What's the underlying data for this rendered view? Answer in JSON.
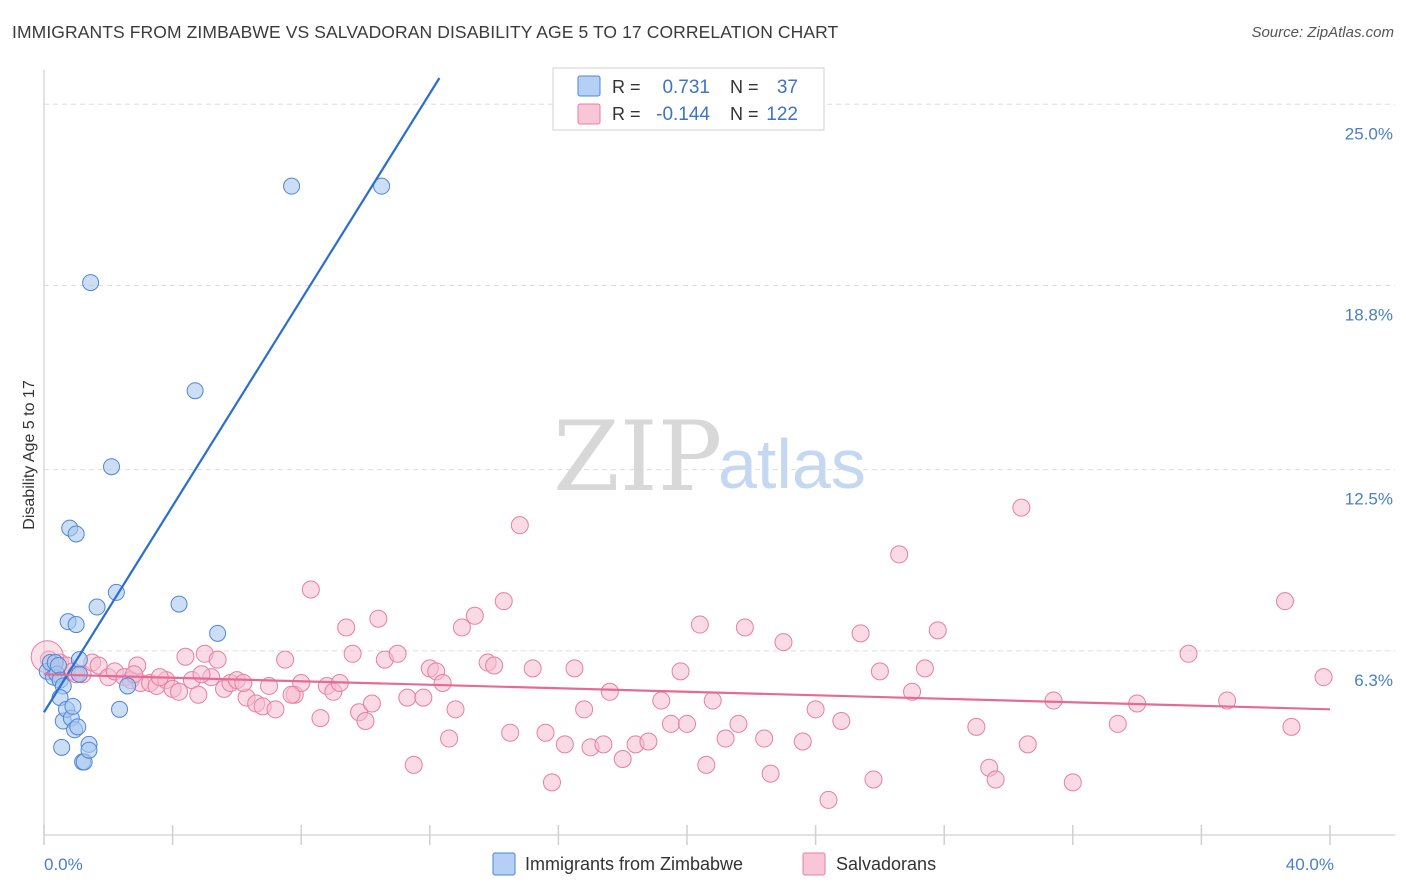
{
  "header": {
    "title": "IMMIGRANTS FROM ZIMBABWE VS SALVADORAN DISABILITY AGE 5 TO 17 CORRELATION CHART",
    "source": "Source: ZipAtlas.com"
  },
  "watermark": {
    "zip": "ZIP",
    "atlas": "atlas"
  },
  "colors": {
    "blue_fill": "#a9c8f0",
    "blue_stroke": "#4f86d4",
    "blue_line": "#2a6fcc",
    "pink_fill": "#f6bcd0",
    "pink_stroke": "#e77fa3",
    "pink_line": "#e56b96",
    "tick_text": "#4a7ec9",
    "grid": "#dddddd"
  },
  "legend": {
    "rows": [
      {
        "r_label": "R =",
        "r_value": "0.731",
        "n_label": "N =",
        "n_value": "37"
      },
      {
        "r_label": "R =",
        "r_value": "-0.144",
        "n_label": "N =",
        "n_value": "122"
      }
    ]
  },
  "bottom_legend": [
    {
      "label": "Immigrants from Zimbabwe"
    },
    {
      "label": "Salvadorans"
    }
  ],
  "chart_data": {
    "type": "scatter",
    "ylabel": "Disability Age 5 to 17",
    "xlim": [
      0,
      40
    ],
    "ylim": [
      0,
      25.9
    ],
    "x_tick_labels": [
      "0.0%",
      "40.0%"
    ],
    "y_ticks": [
      6.3,
      12.5,
      18.8,
      25.0
    ],
    "y_tick_labels": [
      "6.3%",
      "12.5%",
      "18.8%",
      "25.0%"
    ],
    "grid": "dashed horizontal",
    "series": [
      {
        "name": "Immigrants from Zimbabwe",
        "trend": {
          "x": [
            0.0,
            12.3
          ],
          "y": [
            4.2,
            25.9
          ]
        },
        "points": [
          [
            0.1,
            5.6
          ],
          [
            0.2,
            5.9
          ],
          [
            0.3,
            5.4
          ],
          [
            0.35,
            5.9
          ],
          [
            0.4,
            5.5
          ],
          [
            0.45,
            5.8
          ],
          [
            0.5,
            5.3
          ],
          [
            0.6,
            5.1
          ],
          [
            0.5,
            4.7
          ],
          [
            0.55,
            3.0
          ],
          [
            0.6,
            3.9
          ],
          [
            0.7,
            4.3
          ],
          [
            0.75,
            7.3
          ],
          [
            0.8,
            10.5
          ],
          [
            0.85,
            4.0
          ],
          [
            0.9,
            4.4
          ],
          [
            0.95,
            3.6
          ],
          [
            1.0,
            7.2
          ],
          [
            1.0,
            10.3
          ],
          [
            1.05,
            3.7
          ],
          [
            1.1,
            6.0
          ],
          [
            1.1,
            5.5
          ],
          [
            1.2,
            2.5
          ],
          [
            1.25,
            2.5
          ],
          [
            1.4,
            3.1
          ],
          [
            1.4,
            2.9
          ],
          [
            1.45,
            18.9
          ],
          [
            1.65,
            7.8
          ],
          [
            2.1,
            12.6
          ],
          [
            2.25,
            8.3
          ],
          [
            2.35,
            4.3
          ],
          [
            2.6,
            5.1
          ],
          [
            4.2,
            7.9
          ],
          [
            4.7,
            15.2
          ],
          [
            5.4,
            6.9
          ],
          [
            7.7,
            22.2
          ],
          [
            10.5,
            22.2
          ]
        ]
      },
      {
        "name": "Salvadorans",
        "trend": {
          "x": [
            0.0,
            40.0
          ],
          "y": [
            5.5,
            4.3
          ]
        },
        "points": [
          [
            0.15,
            6.0
          ],
          [
            0.3,
            5.7
          ],
          [
            0.5,
            5.9
          ],
          [
            0.7,
            5.8
          ],
          [
            0.9,
            5.6
          ],
          [
            1.2,
            5.5
          ],
          [
            1.5,
            5.9
          ],
          [
            1.7,
            5.8
          ],
          [
            2.0,
            5.4
          ],
          [
            2.2,
            5.6
          ],
          [
            2.5,
            5.4
          ],
          [
            2.7,
            5.3
          ],
          [
            2.9,
            5.8
          ],
          [
            3.0,
            5.2
          ],
          [
            3.3,
            5.2
          ],
          [
            3.5,
            5.1
          ],
          [
            3.8,
            5.3
          ],
          [
            4.0,
            5.0
          ],
          [
            4.2,
            4.9
          ],
          [
            4.4,
            6.1
          ],
          [
            4.6,
            5.3
          ],
          [
            4.8,
            4.8
          ],
          [
            5.0,
            6.2
          ],
          [
            5.2,
            5.4
          ],
          [
            5.4,
            6.0
          ],
          [
            5.6,
            5.0
          ],
          [
            5.8,
            5.2
          ],
          [
            6.0,
            5.3
          ],
          [
            6.3,
            4.7
          ],
          [
            6.6,
            4.5
          ],
          [
            6.8,
            4.4
          ],
          [
            7.0,
            5.1
          ],
          [
            7.2,
            4.3
          ],
          [
            7.5,
            6.0
          ],
          [
            7.8,
            4.8
          ],
          [
            8.0,
            5.2
          ],
          [
            8.3,
            8.4
          ],
          [
            8.6,
            4.0
          ],
          [
            8.8,
            5.1
          ],
          [
            9.0,
            4.9
          ],
          [
            9.2,
            5.2
          ],
          [
            9.4,
            7.1
          ],
          [
            9.6,
            6.2
          ],
          [
            9.8,
            4.2
          ],
          [
            10.0,
            3.9
          ],
          [
            10.2,
            4.5
          ],
          [
            10.4,
            7.4
          ],
          [
            10.6,
            6.0
          ],
          [
            11.0,
            6.2
          ],
          [
            11.3,
            4.7
          ],
          [
            11.5,
            2.4
          ],
          [
            11.8,
            4.7
          ],
          [
            12.0,
            5.7
          ],
          [
            12.2,
            5.6
          ],
          [
            12.4,
            5.2
          ],
          [
            12.6,
            3.3
          ],
          [
            12.8,
            4.3
          ],
          [
            13.0,
            7.1
          ],
          [
            13.4,
            7.5
          ],
          [
            13.8,
            5.9
          ],
          [
            14.0,
            5.8
          ],
          [
            14.3,
            8.0
          ],
          [
            14.5,
            3.5
          ],
          [
            14.8,
            10.6
          ],
          [
            15.2,
            5.7
          ],
          [
            15.6,
            3.5
          ],
          [
            15.8,
            1.8
          ],
          [
            16.2,
            3.1
          ],
          [
            16.5,
            5.7
          ],
          [
            16.8,
            4.3
          ],
          [
            17.0,
            3.0
          ],
          [
            17.4,
            3.1
          ],
          [
            17.6,
            4.9
          ],
          [
            18.0,
            2.6
          ],
          [
            18.4,
            3.1
          ],
          [
            18.8,
            3.2
          ],
          [
            19.2,
            4.6
          ],
          [
            19.5,
            3.8
          ],
          [
            19.8,
            5.6
          ],
          [
            20.0,
            3.8
          ],
          [
            20.4,
            7.2
          ],
          [
            20.6,
            2.4
          ],
          [
            20.8,
            4.6
          ],
          [
            21.2,
            3.3
          ],
          [
            21.6,
            3.8
          ],
          [
            21.8,
            7.1
          ],
          [
            22.4,
            3.3
          ],
          [
            22.6,
            2.1
          ],
          [
            23.0,
            6.6
          ],
          [
            23.6,
            3.2
          ],
          [
            24.0,
            4.3
          ],
          [
            24.4,
            1.2
          ],
          [
            24.8,
            3.9
          ],
          [
            25.4,
            6.9
          ],
          [
            25.8,
            1.9
          ],
          [
            26.0,
            5.6
          ],
          [
            26.6,
            9.6
          ],
          [
            27.0,
            4.9
          ],
          [
            27.4,
            5.7
          ],
          [
            27.8,
            7.0
          ],
          [
            29.0,
            3.7
          ],
          [
            29.4,
            2.3
          ],
          [
            29.6,
            1.9
          ],
          [
            30.4,
            11.2
          ],
          [
            30.6,
            3.1
          ],
          [
            31.4,
            4.6
          ],
          [
            32.0,
            1.8
          ],
          [
            33.4,
            3.8
          ],
          [
            34.0,
            4.5
          ],
          [
            35.6,
            6.2
          ],
          [
            36.8,
            4.6
          ],
          [
            38.8,
            3.7
          ],
          [
            38.6,
            8.0
          ],
          [
            39.8,
            5.4
          ],
          [
            1.0,
            5.5
          ],
          [
            3.6,
            5.4
          ],
          [
            6.2,
            5.2
          ],
          [
            2.8,
            5.5
          ],
          [
            4.9,
            5.5
          ],
          [
            7.7,
            4.8
          ]
        ]
      }
    ]
  }
}
